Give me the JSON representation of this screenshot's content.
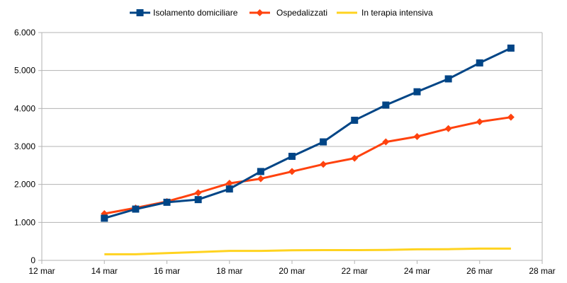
{
  "chart_data": {
    "type": "line",
    "title": "",
    "xlabel": "",
    "ylabel": "",
    "x_ticks": [
      "12 mar",
      "14 mar",
      "16 mar",
      "18 mar",
      "20 mar",
      "22 mar",
      "24 mar",
      "26 mar",
      "28 mar"
    ],
    "y_ticks": [
      "0",
      "1.000",
      "2.000",
      "3.000",
      "4.000",
      "5.000",
      "6.000"
    ],
    "xlim": [
      "12 mar",
      "28 mar"
    ],
    "ylim": [
      0,
      6000
    ],
    "grid": "horizontal",
    "legend_position": "top",
    "x": [
      "14 mar",
      "15 mar",
      "16 mar",
      "17 mar",
      "18 mar",
      "19 mar",
      "20 mar",
      "21 mar",
      "22 mar",
      "23 mar",
      "24 mar",
      "25 mar",
      "26 mar",
      "27 mar"
    ],
    "series": [
      {
        "name": "Isolamento domiciliare",
        "color": "#004586",
        "marker": "square",
        "values": [
          1110,
          1350,
          1530,
          1600,
          1880,
          2340,
          2740,
          3120,
          3690,
          4090,
          4440,
          4780,
          5200,
          5590
        ]
      },
      {
        "name": "Ospedalizzati",
        "color": "#ff420e",
        "marker": "diamond",
        "values": [
          1230,
          1380,
          1550,
          1780,
          2030,
          2150,
          2340,
          2530,
          2690,
          3120,
          3260,
          3470,
          3650,
          3770
        ]
      },
      {
        "name": "In terapia intensiva",
        "color": "#ffd320",
        "marker": "none",
        "values": [
          160,
          160,
          190,
          220,
          250,
          250,
          265,
          270,
          270,
          275,
          290,
          295,
          310,
          310
        ]
      }
    ]
  }
}
